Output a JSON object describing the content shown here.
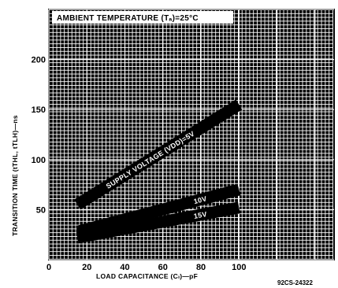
{
  "chart_data": {
    "type": "line",
    "title": "AMBIENT TEMPERATURE (Tₐ)=25°C",
    "xlabel": "LOAD CAPACITANCE (Cₗ)—pF",
    "ylabel": "TRANSITION TIME (tTHL, tTLH)—ns",
    "xlim": [
      0,
      150
    ],
    "ylim": [
      0,
      250
    ],
    "x_ticks": [
      0,
      20,
      40,
      60,
      80,
      100
    ],
    "y_ticks": [
      50,
      100,
      150,
      200
    ],
    "series": [
      {
        "name": "SUPPLY VOLTAGE (VDD)=5V",
        "x": [
          15,
          100
        ],
        "y": [
          55,
          155
        ]
      },
      {
        "name": "10V",
        "x": [
          15,
          100
        ],
        "y": [
          28,
          70
        ]
      },
      {
        "name": "15V",
        "x": [
          15,
          100
        ],
        "y": [
          22,
          52
        ]
      }
    ],
    "grid": true,
    "figure_id": "92CS-24322"
  },
  "colors": {
    "background": "#ffffff",
    "ink": "#000000",
    "grid": "#ffffff"
  }
}
